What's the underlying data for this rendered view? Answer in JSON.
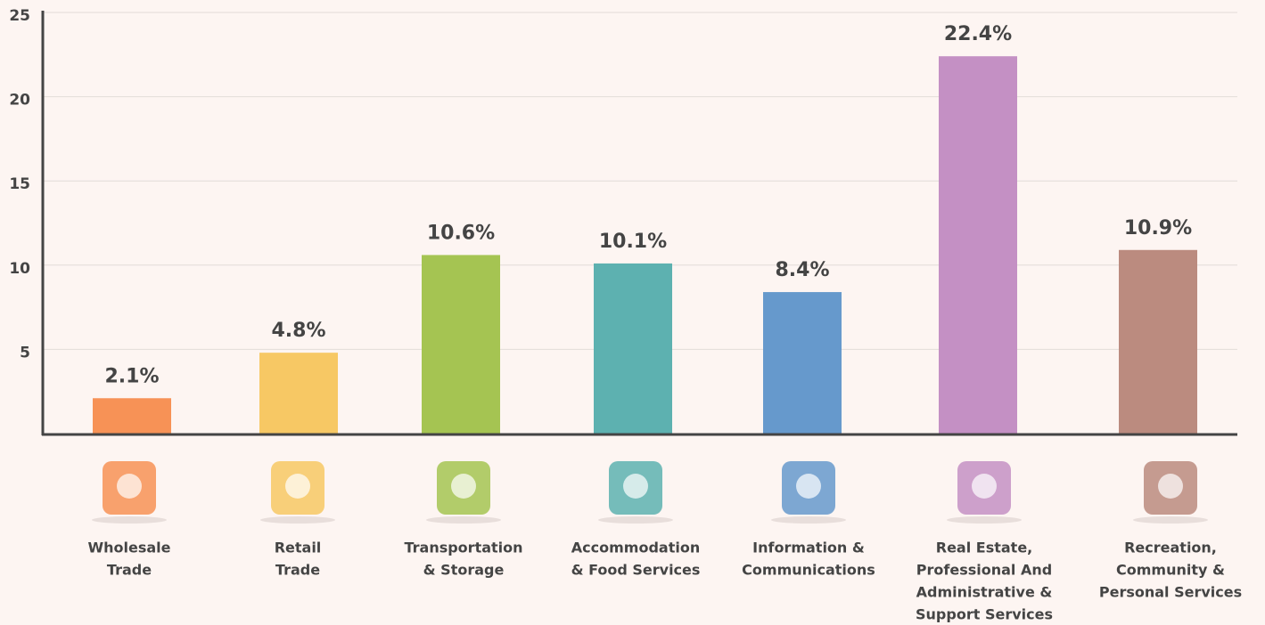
{
  "chart_data": {
    "type": "bar",
    "categories": [
      [
        "Wholesale",
        "Trade"
      ],
      [
        "Retail",
        "Trade"
      ],
      [
        "Transportation",
        "& Storage"
      ],
      [
        "Accommodation",
        "& Food Services"
      ],
      [
        "Information &",
        "Communications"
      ],
      [
        "Real Estate,",
        "Professional And",
        "Administrative &",
        "Support Services"
      ],
      [
        "Recreation,",
        "Community &",
        "Personal Services"
      ]
    ],
    "values": [
      2.1,
      4.8,
      10.6,
      10.1,
      8.4,
      22.4,
      10.9
    ],
    "value_labels": [
      "2.1%",
      "4.8%",
      "10.6%",
      "10.1%",
      "8.4%",
      "22.4%",
      "10.9%"
    ],
    "colors": [
      "#f79256",
      "#f7c864",
      "#a5c452",
      "#5db1b0",
      "#6699cc",
      "#c490c4",
      "#bb8b7f"
    ],
    "ylim": [
      0,
      25
    ],
    "yticks": [
      5,
      10,
      15,
      20,
      25
    ],
    "grid": true
  }
}
